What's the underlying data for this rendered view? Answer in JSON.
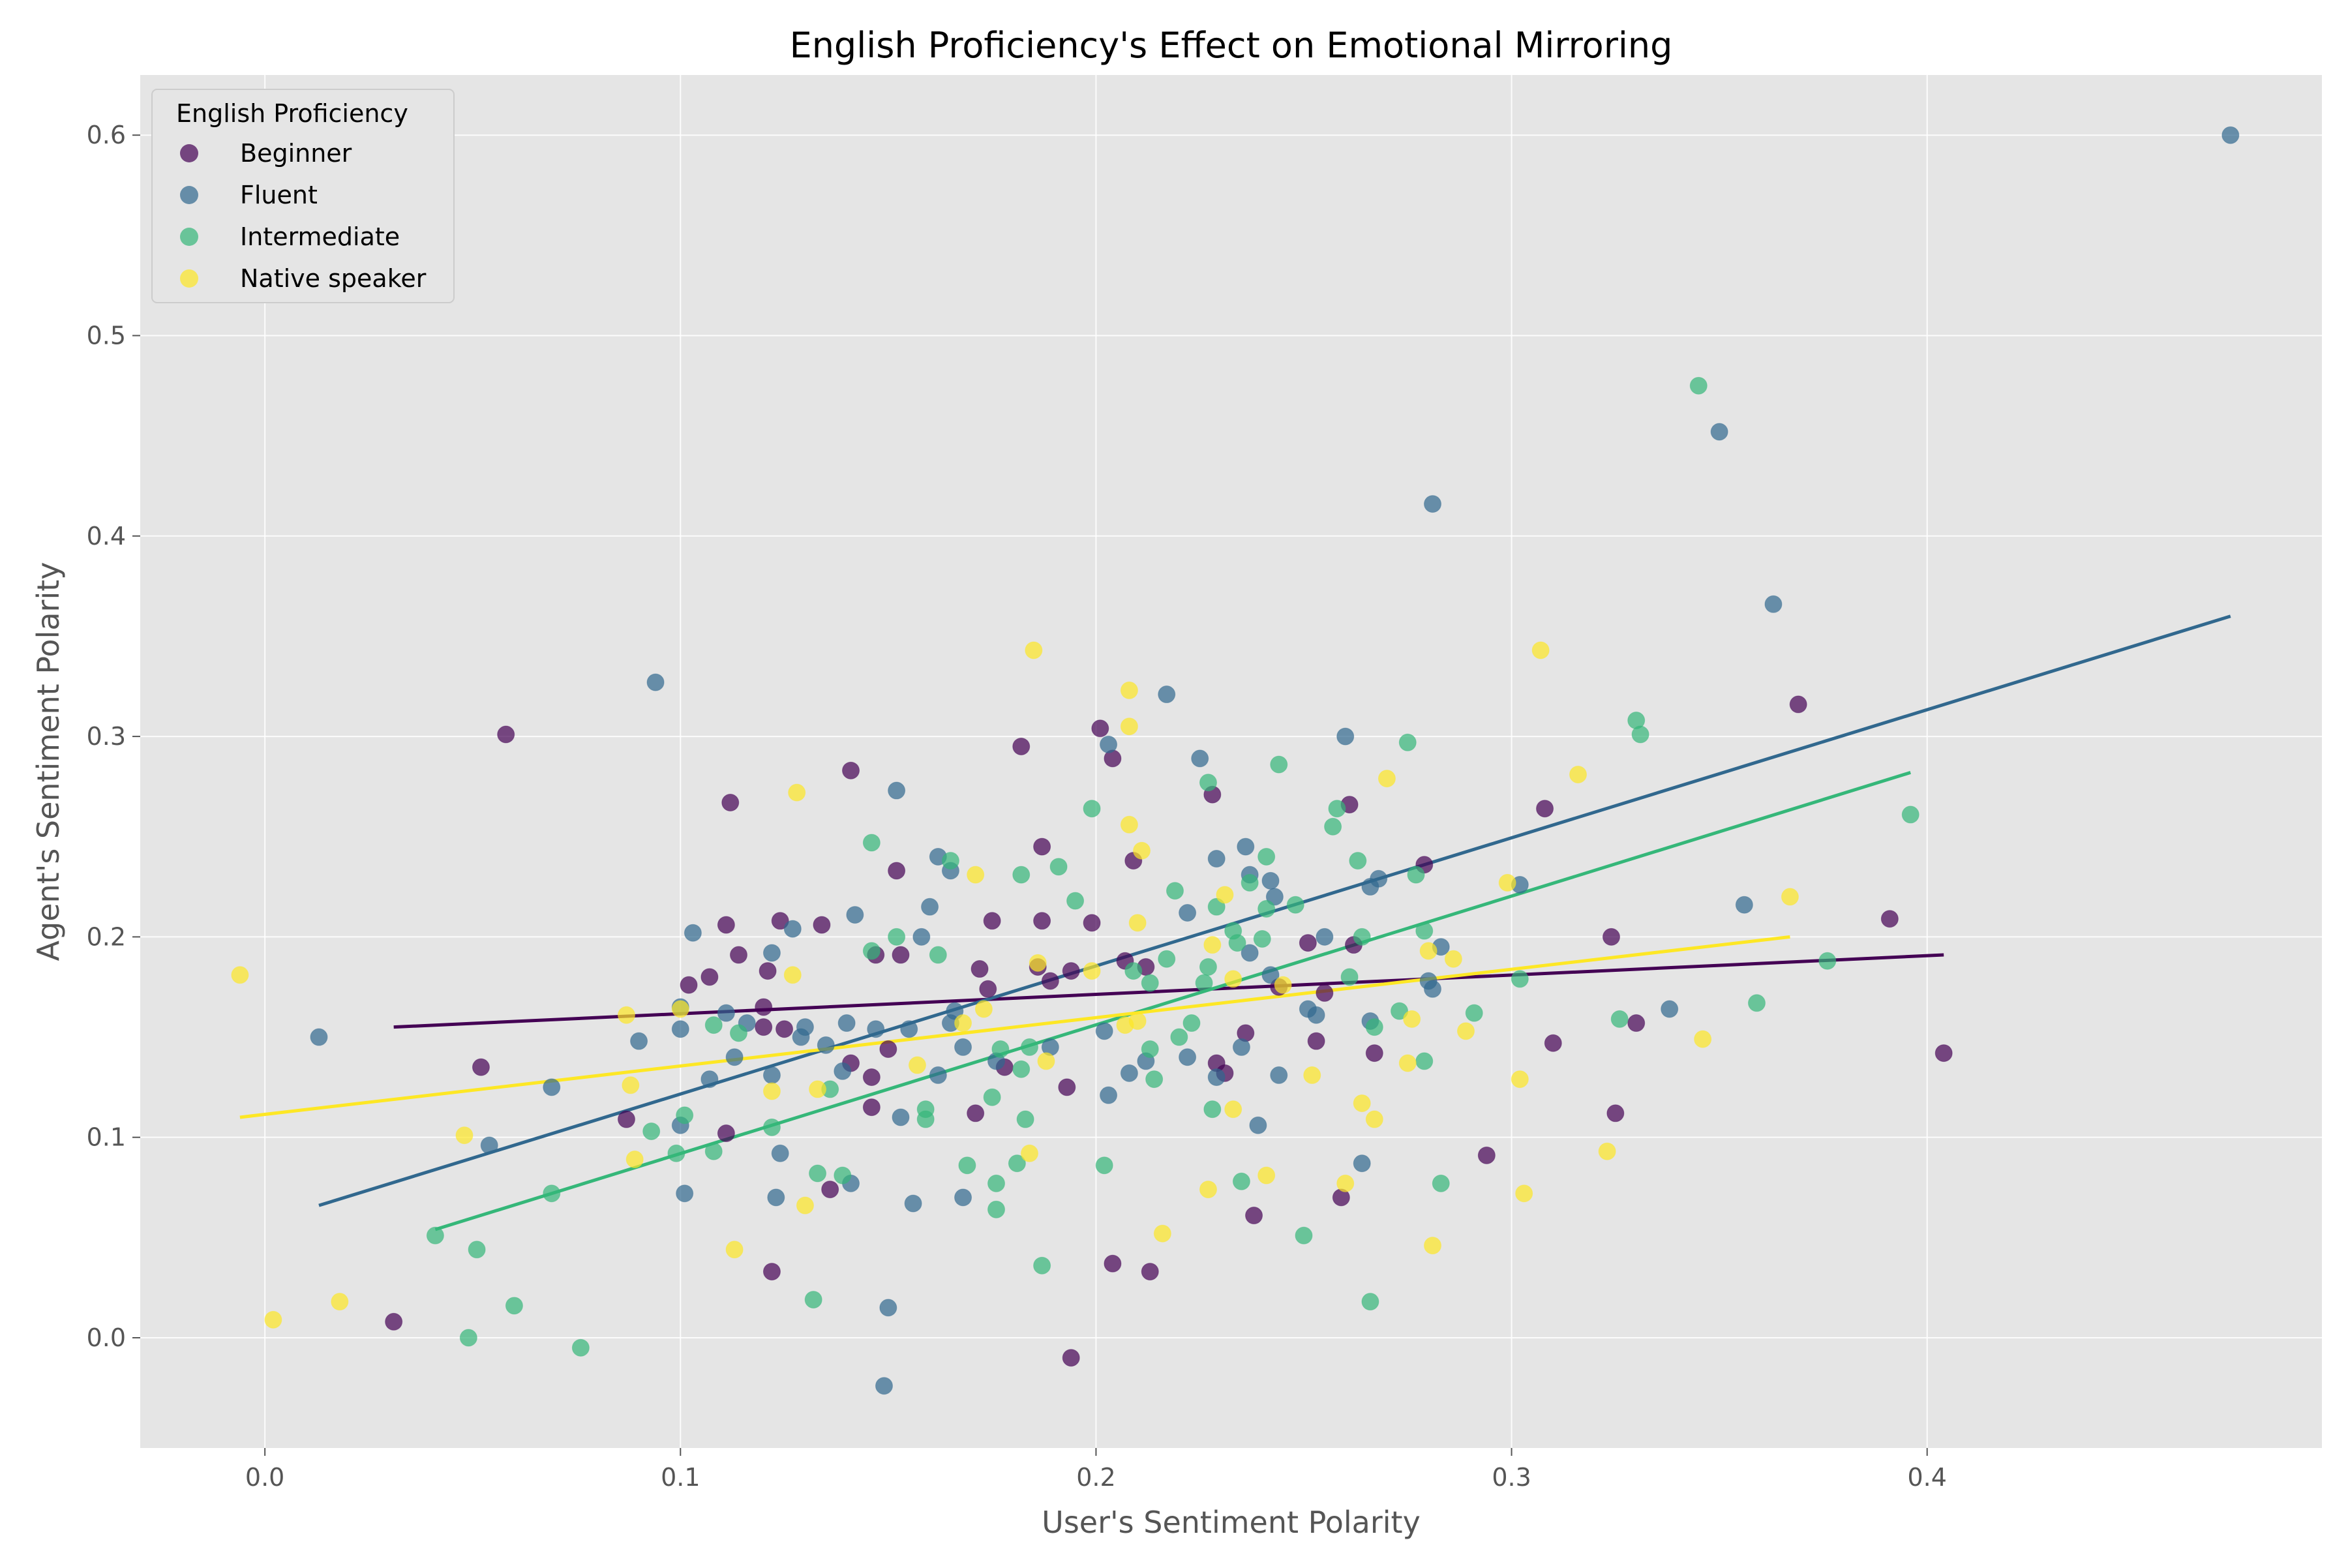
{
  "chart_data": {
    "type": "scatter",
    "title": "English Proficiency's Effect on Emotional Mirroring",
    "xlabel": "User's Sentiment Polarity",
    "ylabel": "Agent's Sentiment Polarity",
    "xlim": [
      -0.03,
      0.495
    ],
    "ylim": [
      -0.055,
      0.63
    ],
    "x_ticks": [
      0.0,
      0.1,
      0.2,
      0.3,
      0.4
    ],
    "y_ticks": [
      0.0,
      0.1,
      0.2,
      0.3,
      0.4,
      0.5,
      0.6
    ],
    "x_tick_labels": [
      "0.0",
      "0.1",
      "0.2",
      "0.3",
      "0.4"
    ],
    "y_tick_labels": [
      "0.0",
      "0.1",
      "0.2",
      "0.3",
      "0.4",
      "0.5",
      "0.6"
    ],
    "grid": true,
    "legend": {
      "title": "English Proficiency",
      "placement": "top-left"
    },
    "series": [
      {
        "name": "Beginner",
        "color": "#440154",
        "trend": [
          [
            0.031,
            0.155
          ],
          [
            0.404,
            0.191
          ]
        ],
        "points": [
          [
            0.031,
            0.008
          ],
          [
            0.052,
            0.135
          ],
          [
            0.058,
            0.301
          ],
          [
            0.087,
            0.109
          ],
          [
            0.102,
            0.176
          ],
          [
            0.107,
            0.18
          ],
          [
            0.111,
            0.206
          ],
          [
            0.111,
            0.102
          ],
          [
            0.112,
            0.267
          ],
          [
            0.114,
            0.191
          ],
          [
            0.12,
            0.165
          ],
          [
            0.12,
            0.155
          ],
          [
            0.121,
            0.183
          ],
          [
            0.122,
            0.033
          ],
          [
            0.124,
            0.208
          ],
          [
            0.125,
            0.154
          ],
          [
            0.134,
            0.206
          ],
          [
            0.136,
            0.074
          ],
          [
            0.141,
            0.137
          ],
          [
            0.141,
            0.283
          ],
          [
            0.146,
            0.13
          ],
          [
            0.146,
            0.115
          ],
          [
            0.147,
            0.191
          ],
          [
            0.15,
            0.144
          ],
          [
            0.152,
            0.233
          ],
          [
            0.153,
            0.191
          ],
          [
            0.171,
            0.112
          ],
          [
            0.172,
            0.184
          ],
          [
            0.174,
            0.174
          ],
          [
            0.175,
            0.208
          ],
          [
            0.178,
            0.135
          ],
          [
            0.182,
            0.295
          ],
          [
            0.186,
            0.185
          ],
          [
            0.187,
            0.245
          ],
          [
            0.187,
            0.208
          ],
          [
            0.189,
            0.178
          ],
          [
            0.193,
            0.125
          ],
          [
            0.194,
            0.183
          ],
          [
            0.194,
            -0.01
          ],
          [
            0.199,
            0.207
          ],
          [
            0.201,
            0.304
          ],
          [
            0.204,
            0.289
          ],
          [
            0.204,
            0.037
          ],
          [
            0.207,
            0.188
          ],
          [
            0.209,
            0.238
          ],
          [
            0.212,
            0.185
          ],
          [
            0.213,
            0.033
          ],
          [
            0.228,
            0.271
          ],
          [
            0.229,
            0.137
          ],
          [
            0.231,
            0.132
          ],
          [
            0.236,
            0.152
          ],
          [
            0.238,
            0.061
          ],
          [
            0.244,
            0.175
          ],
          [
            0.251,
            0.197
          ],
          [
            0.253,
            0.148
          ],
          [
            0.255,
            0.172
          ],
          [
            0.259,
            0.07
          ],
          [
            0.261,
            0.266
          ],
          [
            0.262,
            0.196
          ],
          [
            0.267,
            0.142
          ],
          [
            0.279,
            0.236
          ],
          [
            0.294,
            0.091
          ],
          [
            0.308,
            0.264
          ],
          [
            0.31,
            0.147
          ],
          [
            0.324,
            0.2
          ],
          [
            0.325,
            0.112
          ],
          [
            0.33,
            0.157
          ],
          [
            0.369,
            0.316
          ],
          [
            0.391,
            0.209
          ],
          [
            0.404,
            0.142
          ]
        ]
      },
      {
        "name": "Fluent",
        "color": "#31688e",
        "trend": [
          [
            0.013,
            0.066
          ],
          [
            0.473,
            0.36
          ]
        ],
        "points": [
          [
            0.013,
            0.15
          ],
          [
            0.054,
            0.096
          ],
          [
            0.069,
            0.125
          ],
          [
            0.09,
            0.148
          ],
          [
            0.094,
            0.327
          ],
          [
            0.1,
            0.106
          ],
          [
            0.1,
            0.154
          ],
          [
            0.1,
            0.165
          ],
          [
            0.101,
            0.072
          ],
          [
            0.103,
            0.202
          ],
          [
            0.107,
            0.129
          ],
          [
            0.111,
            0.162
          ],
          [
            0.113,
            0.14
          ],
          [
            0.116,
            0.157
          ],
          [
            0.122,
            0.192
          ],
          [
            0.122,
            0.131
          ],
          [
            0.123,
            0.07
          ],
          [
            0.124,
            0.092
          ],
          [
            0.127,
            0.204
          ],
          [
            0.129,
            0.15
          ],
          [
            0.13,
            0.155
          ],
          [
            0.135,
            0.146
          ],
          [
            0.139,
            0.133
          ],
          [
            0.14,
            0.157
          ],
          [
            0.141,
            0.077
          ],
          [
            0.142,
            0.211
          ],
          [
            0.147,
            0.154
          ],
          [
            0.149,
            -0.024
          ],
          [
            0.15,
            0.015
          ],
          [
            0.152,
            0.273
          ],
          [
            0.153,
            0.11
          ],
          [
            0.155,
            0.154
          ],
          [
            0.156,
            0.067
          ],
          [
            0.158,
            0.2
          ],
          [
            0.16,
            0.215
          ],
          [
            0.162,
            0.24
          ],
          [
            0.162,
            0.131
          ],
          [
            0.165,
            0.233
          ],
          [
            0.165,
            0.157
          ],
          [
            0.166,
            0.163
          ],
          [
            0.168,
            0.07
          ],
          [
            0.168,
            0.145
          ],
          [
            0.176,
            0.138
          ],
          [
            0.189,
            0.145
          ],
          [
            0.202,
            0.153
          ],
          [
            0.203,
            0.296
          ],
          [
            0.203,
            0.121
          ],
          [
            0.208,
            0.132
          ],
          [
            0.212,
            0.138
          ],
          [
            0.217,
            0.321
          ],
          [
            0.222,
            0.212
          ],
          [
            0.222,
            0.14
          ],
          [
            0.225,
            0.289
          ],
          [
            0.229,
            0.239
          ],
          [
            0.229,
            0.13
          ],
          [
            0.235,
            0.145
          ],
          [
            0.236,
            0.245
          ],
          [
            0.237,
            0.192
          ],
          [
            0.237,
            0.231
          ],
          [
            0.239,
            0.106
          ],
          [
            0.242,
            0.181
          ],
          [
            0.242,
            0.228
          ],
          [
            0.243,
            0.22
          ],
          [
            0.244,
            0.131
          ],
          [
            0.251,
            0.164
          ],
          [
            0.253,
            0.161
          ],
          [
            0.255,
            0.2
          ],
          [
            0.26,
            0.3
          ],
          [
            0.264,
            0.087
          ],
          [
            0.266,
            0.225
          ],
          [
            0.268,
            0.229
          ],
          [
            0.266,
            0.158
          ],
          [
            0.28,
            0.178
          ],
          [
            0.281,
            0.174
          ],
          [
            0.281,
            0.416
          ],
          [
            0.283,
            0.195
          ],
          [
            0.302,
            0.226
          ],
          [
            0.338,
            0.164
          ],
          [
            0.35,
            0.452
          ],
          [
            0.356,
            0.216
          ],
          [
            0.363,
            0.366
          ],
          [
            0.473,
            0.6
          ]
        ]
      },
      {
        "name": "Intermediate",
        "color": "#35b779",
        "trend": [
          [
            0.041,
            0.054
          ],
          [
            0.396,
            0.282
          ]
        ],
        "points": [
          [
            0.041,
            0.051
          ],
          [
            0.049,
            0.0
          ],
          [
            0.051,
            0.044
          ],
          [
            0.06,
            0.016
          ],
          [
            0.069,
            0.072
          ],
          [
            0.076,
            -0.005
          ],
          [
            0.093,
            0.103
          ],
          [
            0.099,
            0.092
          ],
          [
            0.101,
            0.111
          ],
          [
            0.108,
            0.093
          ],
          [
            0.108,
            0.156
          ],
          [
            0.114,
            0.152
          ],
          [
            0.122,
            0.105
          ],
          [
            0.132,
            0.019
          ],
          [
            0.133,
            0.082
          ],
          [
            0.136,
            0.124
          ],
          [
            0.139,
            0.081
          ],
          [
            0.146,
            0.193
          ],
          [
            0.146,
            0.247
          ],
          [
            0.152,
            0.2
          ],
          [
            0.159,
            0.114
          ],
          [
            0.159,
            0.109
          ],
          [
            0.162,
            0.191
          ],
          [
            0.165,
            0.238
          ],
          [
            0.169,
            0.086
          ],
          [
            0.175,
            0.12
          ],
          [
            0.176,
            0.064
          ],
          [
            0.176,
            0.077
          ],
          [
            0.177,
            0.144
          ],
          [
            0.181,
            0.087
          ],
          [
            0.182,
            0.231
          ],
          [
            0.182,
            0.134
          ],
          [
            0.183,
            0.109
          ],
          [
            0.184,
            0.145
          ],
          [
            0.187,
            0.036
          ],
          [
            0.191,
            0.235
          ],
          [
            0.195,
            0.218
          ],
          [
            0.199,
            0.264
          ],
          [
            0.202,
            0.086
          ],
          [
            0.209,
            0.183
          ],
          [
            0.213,
            0.177
          ],
          [
            0.213,
            0.144
          ],
          [
            0.214,
            0.129
          ],
          [
            0.217,
            0.189
          ],
          [
            0.219,
            0.223
          ],
          [
            0.22,
            0.15
          ],
          [
            0.223,
            0.157
          ],
          [
            0.226,
            0.177
          ],
          [
            0.227,
            0.277
          ],
          [
            0.227,
            0.185
          ],
          [
            0.228,
            0.114
          ],
          [
            0.229,
            0.215
          ],
          [
            0.233,
            0.203
          ],
          [
            0.234,
            0.197
          ],
          [
            0.235,
            0.078
          ],
          [
            0.237,
            0.227
          ],
          [
            0.24,
            0.199
          ],
          [
            0.241,
            0.214
          ],
          [
            0.241,
            0.24
          ],
          [
            0.244,
            0.286
          ],
          [
            0.248,
            0.216
          ],
          [
            0.25,
            0.051
          ],
          [
            0.257,
            0.255
          ],
          [
            0.258,
            0.264
          ],
          [
            0.261,
            0.18
          ],
          [
            0.263,
            0.238
          ],
          [
            0.264,
            0.2
          ],
          [
            0.266,
            0.018
          ],
          [
            0.267,
            0.155
          ],
          [
            0.273,
            0.163
          ],
          [
            0.275,
            0.297
          ],
          [
            0.277,
            0.231
          ],
          [
            0.279,
            0.138
          ],
          [
            0.279,
            0.203
          ],
          [
            0.283,
            0.077
          ],
          [
            0.291,
            0.162
          ],
          [
            0.302,
            0.179
          ],
          [
            0.326,
            0.159
          ],
          [
            0.33,
            0.308
          ],
          [
            0.331,
            0.301
          ],
          [
            0.345,
            0.475
          ],
          [
            0.359,
            0.167
          ],
          [
            0.376,
            0.188
          ],
          [
            0.396,
            0.261
          ]
        ]
      },
      {
        "name": "Native speaker",
        "color": "#fde725",
        "trend": [
          [
            -0.006,
            0.11
          ],
          [
            0.367,
            0.2
          ]
        ],
        "points": [
          [
            -0.006,
            0.181
          ],
          [
            0.002,
            0.009
          ],
          [
            0.018,
            0.018
          ],
          [
            0.048,
            0.101
          ],
          [
            0.087,
            0.161
          ],
          [
            0.088,
            0.126
          ],
          [
            0.089,
            0.089
          ],
          [
            0.1,
            0.164
          ],
          [
            0.113,
            0.044
          ],
          [
            0.122,
            0.123
          ],
          [
            0.127,
            0.181
          ],
          [
            0.128,
            0.272
          ],
          [
            0.13,
            0.066
          ],
          [
            0.133,
            0.124
          ],
          [
            0.157,
            0.136
          ],
          [
            0.168,
            0.157
          ],
          [
            0.171,
            0.231
          ],
          [
            0.173,
            0.164
          ],
          [
            0.184,
            0.092
          ],
          [
            0.185,
            0.343
          ],
          [
            0.186,
            0.187
          ],
          [
            0.188,
            0.138
          ],
          [
            0.199,
            0.183
          ],
          [
            0.207,
            0.156
          ],
          [
            0.208,
            0.305
          ],
          [
            0.208,
            0.323
          ],
          [
            0.208,
            0.256
          ],
          [
            0.21,
            0.158
          ],
          [
            0.21,
            0.207
          ],
          [
            0.211,
            0.243
          ],
          [
            0.216,
            0.052
          ],
          [
            0.227,
            0.074
          ],
          [
            0.228,
            0.196
          ],
          [
            0.231,
            0.221
          ],
          [
            0.233,
            0.179
          ],
          [
            0.233,
            0.114
          ],
          [
            0.241,
            0.081
          ],
          [
            0.245,
            0.176
          ],
          [
            0.252,
            0.131
          ],
          [
            0.26,
            0.077
          ],
          [
            0.264,
            0.117
          ],
          [
            0.267,
            0.109
          ],
          [
            0.27,
            0.279
          ],
          [
            0.275,
            0.137
          ],
          [
            0.276,
            0.159
          ],
          [
            0.28,
            0.193
          ],
          [
            0.281,
            0.046
          ],
          [
            0.286,
            0.189
          ],
          [
            0.289,
            0.153
          ],
          [
            0.299,
            0.227
          ],
          [
            0.302,
            0.129
          ],
          [
            0.303,
            0.072
          ],
          [
            0.307,
            0.343
          ],
          [
            0.316,
            0.281
          ],
          [
            0.323,
            0.093
          ],
          [
            0.346,
            0.149
          ],
          [
            0.367,
            0.22
          ]
        ]
      }
    ]
  }
}
